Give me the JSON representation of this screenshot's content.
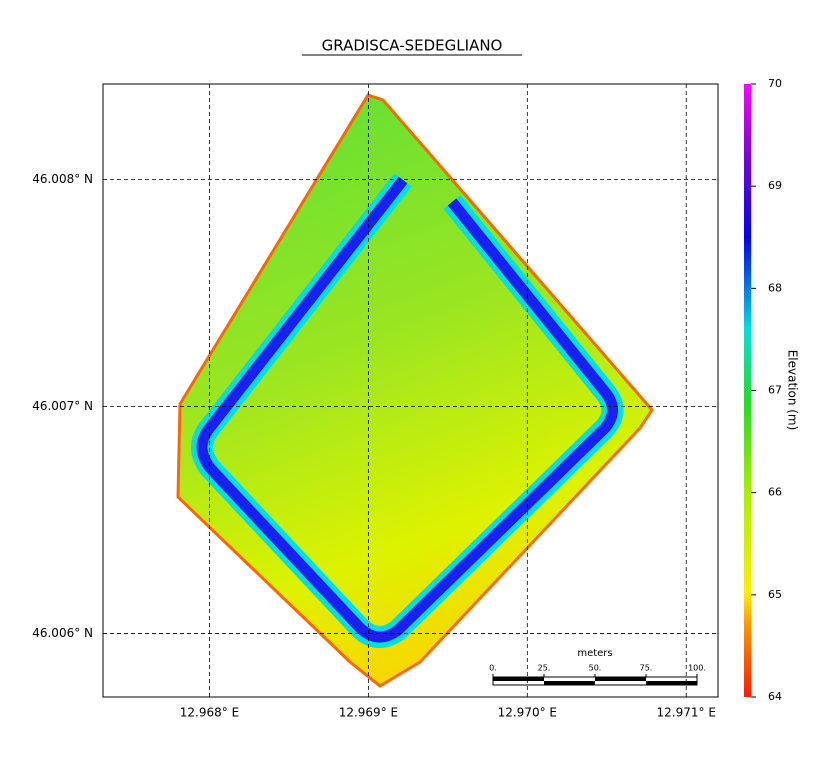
{
  "title": "GRADISCA-SEDEGLIANO",
  "map": {
    "xlim": [
      12.96733,
      12.9712
    ],
    "ylim": [
      46.00572,
      46.00842
    ],
    "xticks": [
      {
        "value": 12.968,
        "label": "12.968° E"
      },
      {
        "value": 12.969,
        "label": "12.969° E"
      },
      {
        "value": 12.97,
        "label": "12.970° E"
      },
      {
        "value": 12.971,
        "label": "12.971° E"
      }
    ],
    "yticks": [
      {
        "value": 46.006,
        "label": "46.006° N"
      },
      {
        "value": 46.007,
        "label": "46.007° N"
      },
      {
        "value": 46.008,
        "label": "46.008° N"
      }
    ],
    "grid": true
  },
  "colorbar": {
    "label": "Elevation (m)",
    "lim": [
      64,
      70
    ],
    "ticks": [
      64,
      65,
      66,
      67,
      68,
      69,
      70
    ]
  },
  "scalebar": {
    "unit": "meters",
    "lim": [
      0,
      100
    ],
    "ticks": [
      {
        "value": 0,
        "label": "0."
      },
      {
        "value": 25,
        "label": "25."
      },
      {
        "value": 50,
        "label": "50."
      },
      {
        "value": 75,
        "label": "75."
      },
      {
        "value": 100,
        "label": "100."
      }
    ]
  }
}
